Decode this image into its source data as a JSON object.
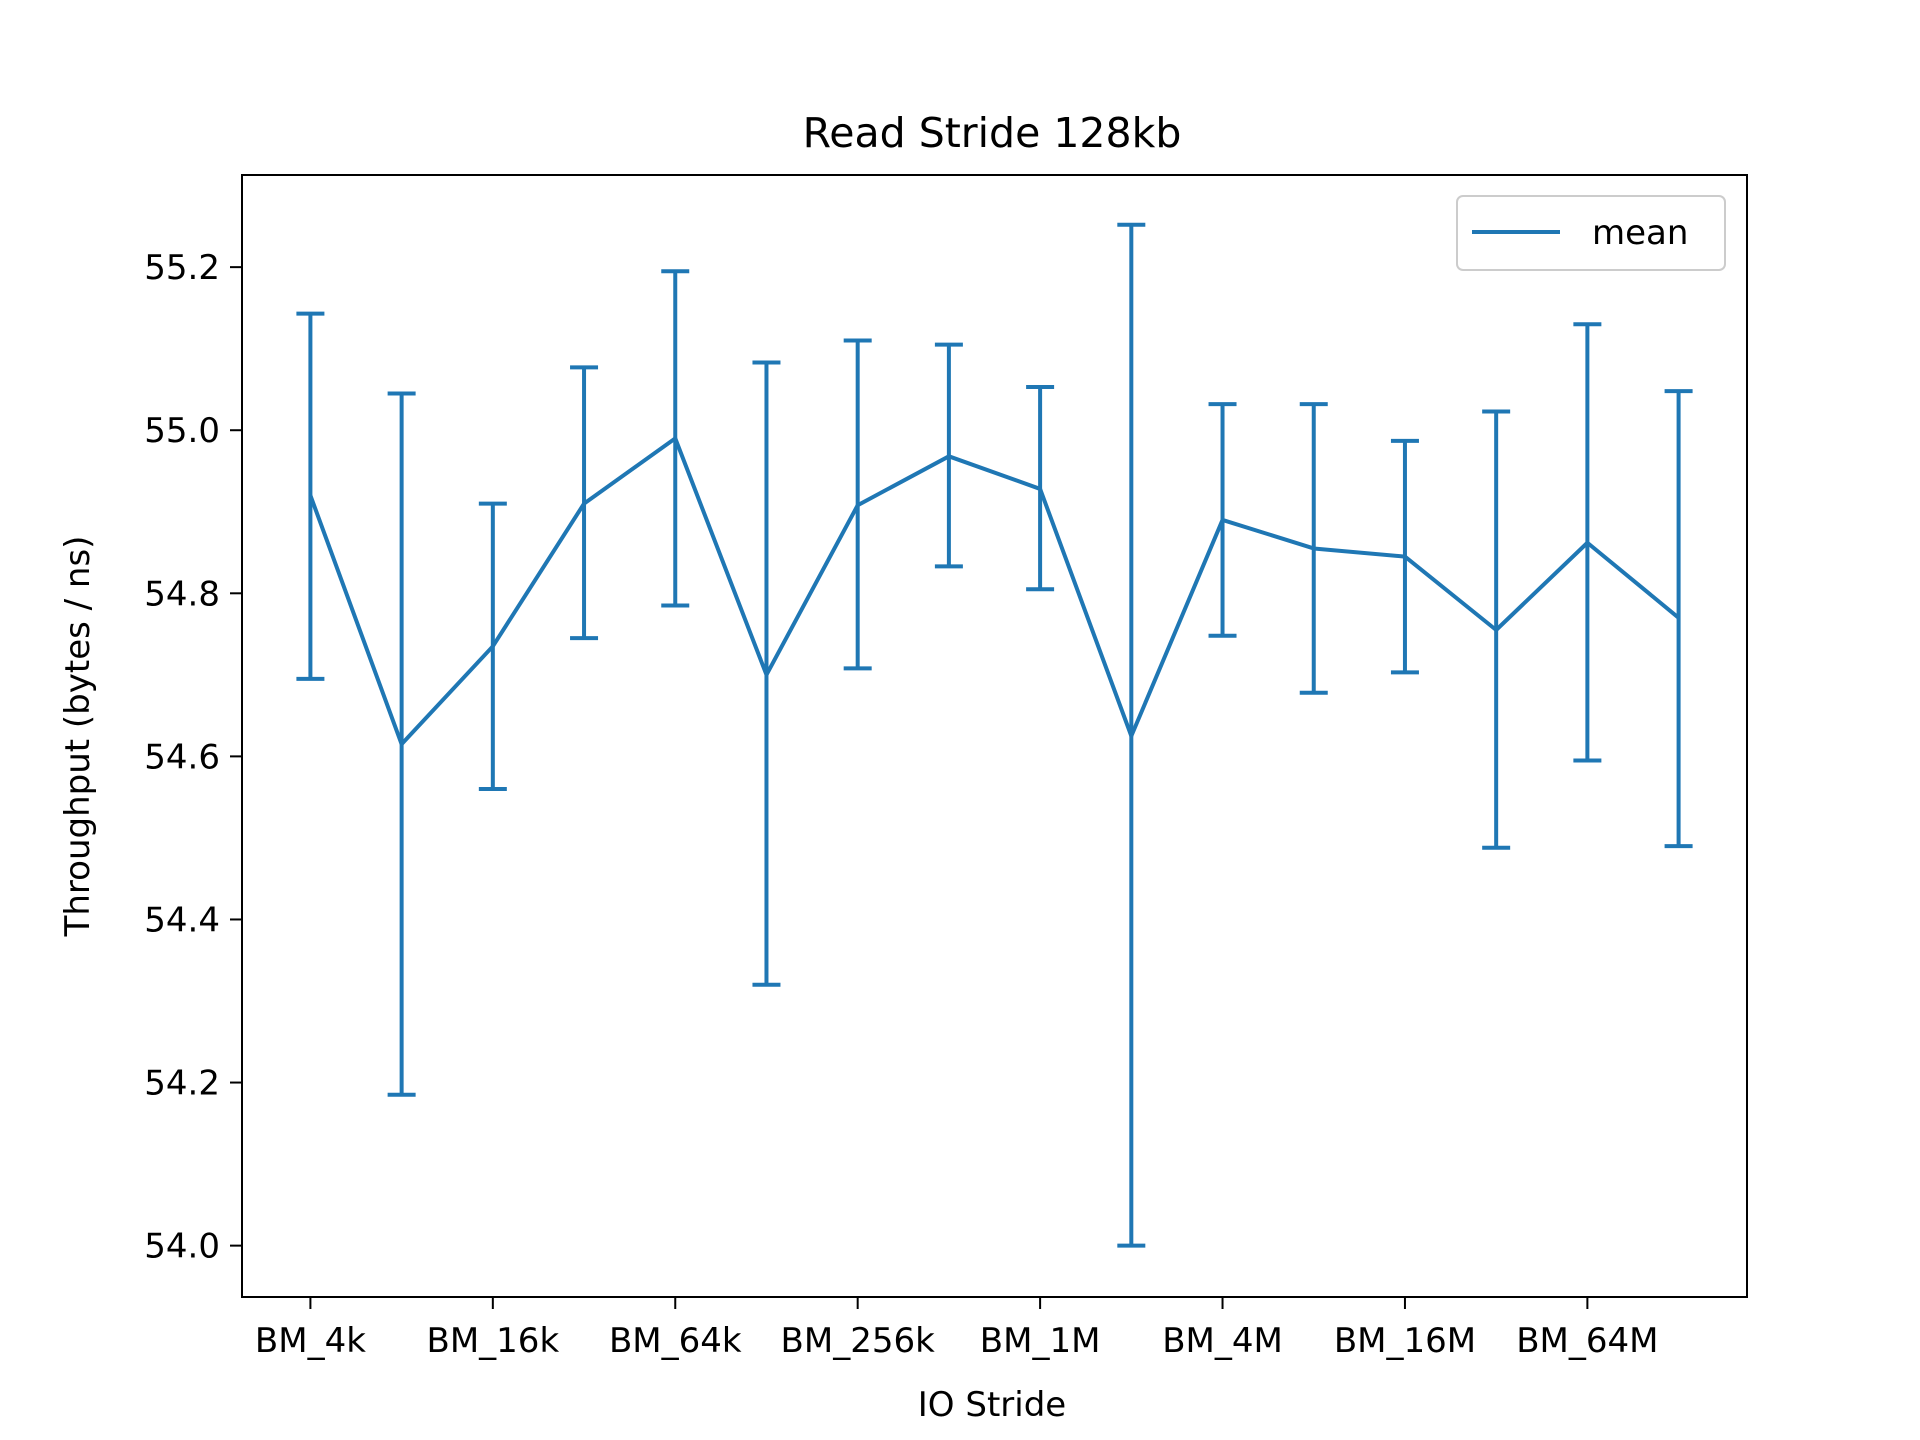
{
  "chart_data": {
    "type": "line",
    "title": "Read Stride 128kb",
    "xlabel": "IO Stride",
    "ylabel": "Throughput (bytes / ns)",
    "x_tick_labels": [
      "BM_4k",
      "BM_16k",
      "BM_64k",
      "BM_256k",
      "BM_1M",
      "BM_4M",
      "BM_16M",
      "BM_64M"
    ],
    "x_tick_positions": [
      0,
      2,
      4,
      6,
      8,
      10,
      12,
      14
    ],
    "xlim": [
      -0.75,
      15.75
    ],
    "y_ticks": [
      54.0,
      54.2,
      54.4,
      54.6,
      54.8,
      55.0,
      55.2
    ],
    "y_tick_labels": [
      "54.0",
      "54.2",
      "54.4",
      "54.6",
      "54.8",
      "55.0",
      "55.2"
    ],
    "ylim": [
      53.937,
      55.313
    ],
    "grid": false,
    "legend_position": "top-right",
    "series": [
      {
        "name": "mean",
        "color": "#1f77b4",
        "x": [
          0,
          1,
          2,
          3,
          4,
          5,
          6,
          7,
          8,
          9,
          10,
          11,
          12,
          13,
          14,
          15
        ],
        "values": [
          54.92,
          54.615,
          54.735,
          54.91,
          54.99,
          54.7,
          54.908,
          54.968,
          54.928,
          54.625,
          54.89,
          54.855,
          54.845,
          54.755,
          54.862,
          54.77
        ],
        "error_low": [
          54.695,
          54.185,
          54.56,
          54.745,
          54.785,
          54.32,
          54.708,
          54.833,
          54.805,
          54.0,
          54.748,
          54.678,
          54.703,
          54.488,
          54.595,
          54.49
        ],
        "error_high": [
          55.143,
          55.045,
          54.91,
          55.077,
          55.195,
          55.083,
          55.11,
          55.105,
          55.053,
          55.252,
          55.032,
          55.032,
          54.987,
          55.023,
          55.13,
          55.048
        ]
      }
    ]
  }
}
